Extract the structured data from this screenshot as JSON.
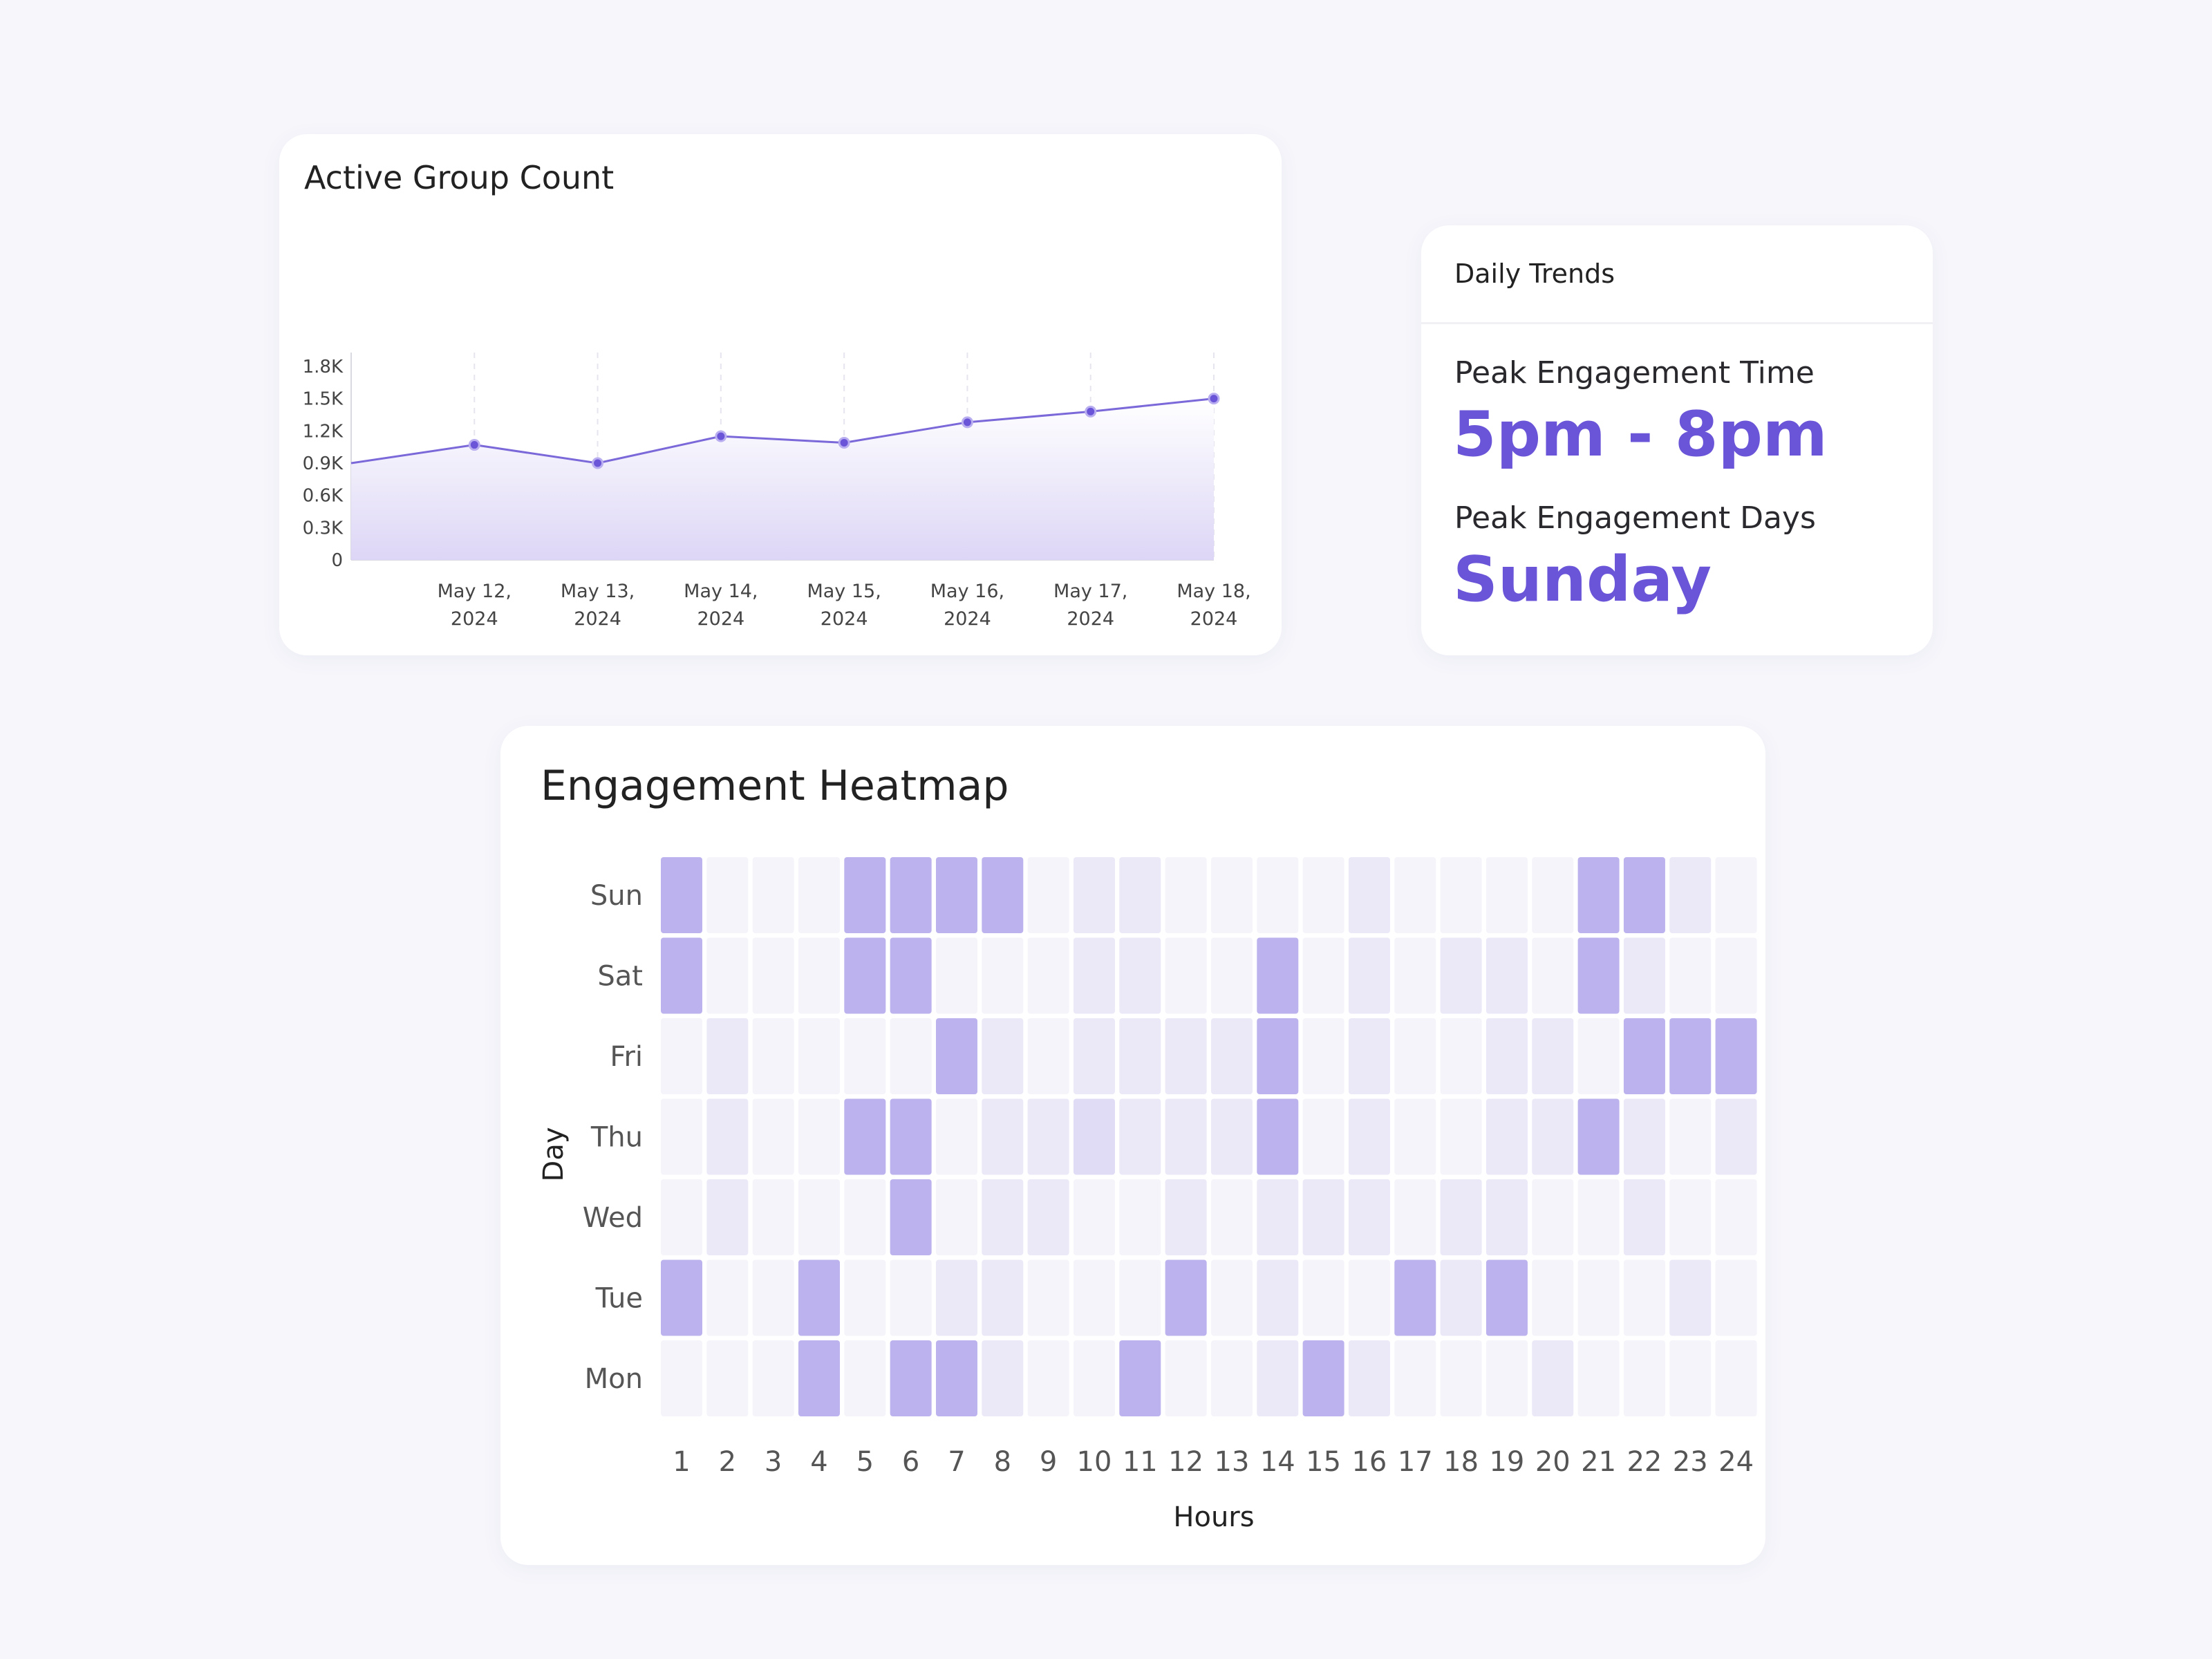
{
  "active_group": {
    "title": "Active Group Count"
  },
  "daily_trends": {
    "title": "Daily Trends",
    "peak_time_label": "Peak Engagement Time",
    "peak_time_value": "5pm - 8pm",
    "peak_days_label": "Peak Engagement Days",
    "peak_days_value": "Sunday"
  },
  "heatmap": {
    "title": "Engagement Heatmap"
  },
  "colors": {
    "accent": "#6a55d8",
    "line": "#7b68d9",
    "cell_levels": [
      "#f5f4fa",
      "#ebe8f8",
      "#e1dcf6",
      "#bbb2ee"
    ]
  },
  "chart_data": [
    {
      "type": "area",
      "title": "Active Group Count",
      "x": [
        "",
        "May 12, 2024",
        "May 13, 2024",
        "May 14, 2024",
        "May 15, 2024",
        "May 16, 2024",
        "May 17, 2024",
        "May 18, 2024"
      ],
      "tick_labels": [
        [
          "May 12,",
          "2024"
        ],
        [
          "May 13,",
          "2024"
        ],
        [
          "May 14,",
          "2024"
        ],
        [
          "May 15,",
          "2024"
        ],
        [
          "May 16,",
          "2024"
        ],
        [
          "May 17,",
          "2024"
        ],
        [
          "May 18,",
          "2024"
        ]
      ],
      "values": [
        900,
        1070,
        900,
        1150,
        1090,
        1280,
        1380,
        1500
      ],
      "yticks": [
        "0",
        "0.3K",
        "0.6K",
        "0.9K",
        "1.2K",
        "1.5K",
        "1.8K"
      ],
      "ylim": [
        0,
        1800
      ],
      "grid": "vertical dashed"
    },
    {
      "type": "heatmap",
      "title": "Engagement Heatmap",
      "xlabel": "Hours",
      "ylabel": "Day",
      "x": [
        "1",
        "2",
        "3",
        "4",
        "5",
        "6",
        "7",
        "8",
        "9",
        "10",
        "11",
        "12",
        "13",
        "14",
        "15",
        "16",
        "17",
        "18",
        "19",
        "20",
        "21",
        "22",
        "23",
        "24"
      ],
      "y": [
        "Sun",
        "Sat",
        "Fri",
        "Thu",
        "Wed",
        "Tue",
        "Mon"
      ],
      "scale": "0 = lowest, 3 = highest engagement",
      "values": [
        [
          3,
          0,
          0,
          0,
          3,
          3,
          3,
          3,
          0,
          1,
          1,
          0,
          0,
          0,
          0,
          1,
          0,
          0,
          0,
          0,
          3,
          3,
          1,
          0
        ],
        [
          3,
          0,
          0,
          0,
          3,
          3,
          0,
          0,
          0,
          1,
          1,
          0,
          0,
          3,
          0,
          1,
          0,
          1,
          1,
          0,
          3,
          1,
          0,
          0
        ],
        [
          0,
          1,
          0,
          0,
          0,
          0,
          3,
          1,
          0,
          1,
          1,
          1,
          1,
          3,
          0,
          1,
          0,
          0,
          1,
          1,
          0,
          3,
          3,
          3
        ],
        [
          0,
          1,
          0,
          0,
          3,
          3,
          0,
          1,
          1,
          2,
          1,
          1,
          1,
          3,
          0,
          1,
          0,
          0,
          1,
          1,
          3,
          1,
          0,
          1
        ],
        [
          0,
          1,
          0,
          0,
          0,
          3,
          0,
          1,
          1,
          0,
          0,
          1,
          0,
          1,
          1,
          1,
          0,
          1,
          1,
          0,
          0,
          1,
          0,
          0
        ],
        [
          3,
          0,
          0,
          3,
          0,
          0,
          1,
          1,
          0,
          0,
          0,
          3,
          0,
          1,
          0,
          0,
          3,
          1,
          3,
          0,
          0,
          0,
          1,
          0
        ],
        [
          0,
          0,
          0,
          3,
          0,
          3,
          3,
          1,
          0,
          0,
          3,
          0,
          0,
          1,
          3,
          1,
          0,
          0,
          0,
          1,
          0,
          0,
          0,
          0
        ]
      ]
    }
  ]
}
